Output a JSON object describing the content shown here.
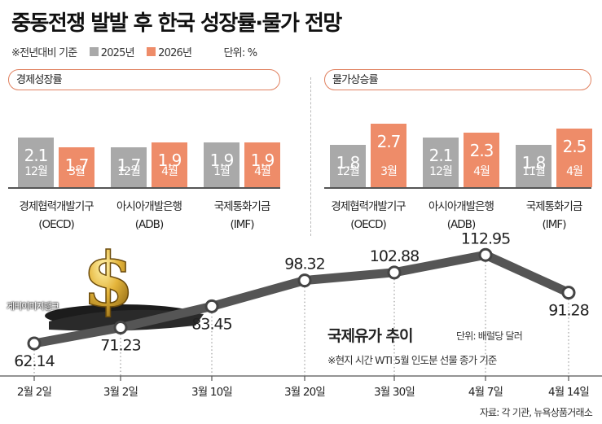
{
  "title": "중동전쟁 발발 후 한국 성장률·물가 전망",
  "legend": {
    "note": "※전년대비 기준",
    "items": [
      "2025년",
      "2026년"
    ],
    "unit": "단위: %"
  },
  "colors": {
    "y2025": "#a9a9a9",
    "y2026": "#ee8c69",
    "line": "#555555",
    "panel_border": "#e0805f"
  },
  "watermark": "게티이미지뱅크",
  "chart_data": [
    {
      "type": "bar",
      "title": "경제성장률",
      "categories": [
        "경제협력개발기구\n(OECD)",
        "아시아개발은행\n(ADB)",
        "국제통화기금\n(IMF)"
      ],
      "series": [
        {
          "name": "2025년",
          "values": [
            2.1,
            1.7,
            1.9
          ],
          "labels": [
            "12월",
            "12월",
            "1월"
          ]
        },
        {
          "name": "2026년",
          "values": [
            1.7,
            1.9,
            1.9
          ],
          "labels": [
            "3월",
            "4월",
            "4월"
          ]
        }
      ]
    },
    {
      "type": "bar",
      "title": "물가상승률",
      "categories": [
        "경제협력개발기구\n(OECD)",
        "아시아개발은행\n(ADB)",
        "국제통화기금\n(IMF)"
      ],
      "series": [
        {
          "name": "2025년",
          "values": [
            1.8,
            2.1,
            1.8
          ],
          "labels": [
            "12월",
            "12월",
            "11월"
          ]
        },
        {
          "name": "2026년",
          "values": [
            2.7,
            2.3,
            2.5
          ],
          "labels": [
            "3월",
            "4월",
            "4월"
          ]
        }
      ]
    },
    {
      "type": "line",
      "title": "국제유가 추이",
      "unit": "단위: 배럴당 달러",
      "note": "※현지 시간 WTI 5월 인도분 선물 종가 기준",
      "x": [
        "2월 2일",
        "3월 2일",
        "3월 10일",
        "3월 20일",
        "3월 30일",
        "4월 7일",
        "4월 14일"
      ],
      "y": [
        62.14,
        71.23,
        83.45,
        98.32,
        102.88,
        112.95,
        91.28
      ]
    }
  ],
  "source": "자료: 각 기관, 뉴욕상품거래소"
}
